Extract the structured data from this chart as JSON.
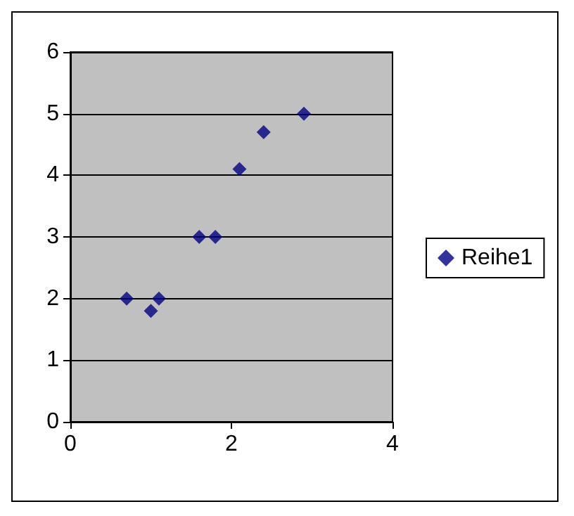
{
  "chart_data": {
    "type": "scatter",
    "x": [
      0.7,
      1.0,
      1.1,
      1.6,
      1.8,
      2.1,
      2.4,
      2.9
    ],
    "series": [
      {
        "name": "Reihe1",
        "color": "#000080",
        "values": [
          2,
          1.8,
          2,
          3,
          3,
          4.1,
          4.7,
          5
        ]
      }
    ],
    "xlim": [
      0,
      4
    ],
    "xticks": [
      0,
      2,
      4
    ],
    "ylim": [
      0,
      6
    ],
    "yticks": [
      0,
      1,
      2,
      3,
      4,
      5,
      6
    ],
    "grid": "y",
    "legend": "right",
    "marker": "diamond"
  }
}
